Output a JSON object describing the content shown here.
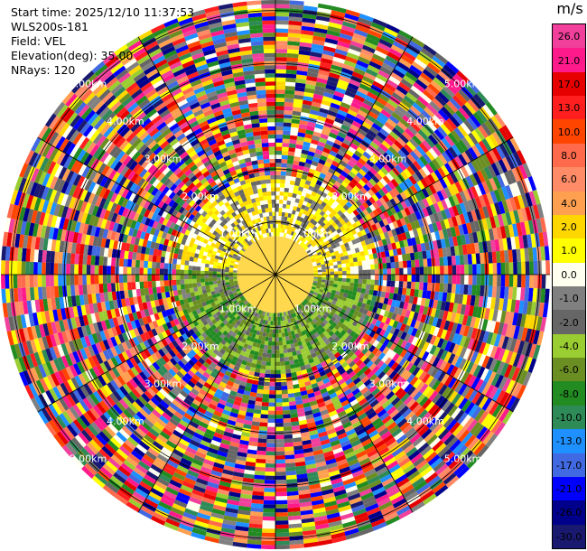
{
  "header": {
    "start_time": "Start time: 2025/12/10 11:37:53",
    "site": "WLS200s-181",
    "field": "Field: VEL",
    "elevation": "Elevation(deg): 35.00",
    "nrays": "NRays: 120"
  },
  "colorbar": {
    "unit": "m/s",
    "labels": [
      "26.0",
      "21.0",
      "17.0",
      "13.0",
      "10.0",
      "8.0",
      "6.0",
      "4.0",
      "2.0",
      "1.0",
      "0.0",
      "-1.0",
      "-2.0",
      "-4.0",
      "-6.0",
      "-8.0",
      "-10.0",
      "-13.0",
      "-17.0",
      "-21.0",
      "-26.0",
      "-30.0"
    ],
    "colors": [
      "#f0409b",
      "#ff1a8c",
      "#e60000",
      "#ff1f1f",
      "#ff4500",
      "#ff6a4d",
      "#ff8c66",
      "#ffa050",
      "#ffd700",
      "#ffff00",
      "#fffff0",
      "#808080",
      "#666666",
      "#9acd32",
      "#6b8e23",
      "#228b22",
      "#2e8b57",
      "#1e90ff",
      "#4169e1",
      "#0000ff",
      "#00008b",
      "#191970"
    ]
  },
  "chart_data": {
    "type": "heatmap",
    "title": "",
    "field": "VEL",
    "unit": "m/s",
    "elevation_deg": 35.0,
    "n_rays": 120,
    "range_rings_km": [
      {
        "label": "1.00km",
        "value": 1.0
      },
      {
        "label": "2.00km",
        "value": 2.0
      },
      {
        "label": "3.00km",
        "value": 3.0
      },
      {
        "label": "4.00km",
        "value": 4.0
      },
      {
        "label": "5.00km",
        "value": 5.0
      }
    ],
    "max_range_km": 5.2,
    "color_levels": [
      -30.0,
      -26.0,
      -21.0,
      -17.0,
      -13.0,
      -10.0,
      -8.0,
      -6.0,
      -4.0,
      -2.0,
      -1.0,
      0.0,
      1.0,
      2.0,
      4.0,
      6.0,
      8.0,
      10.0,
      13.0,
      17.0,
      21.0,
      26.0
    ]
  }
}
